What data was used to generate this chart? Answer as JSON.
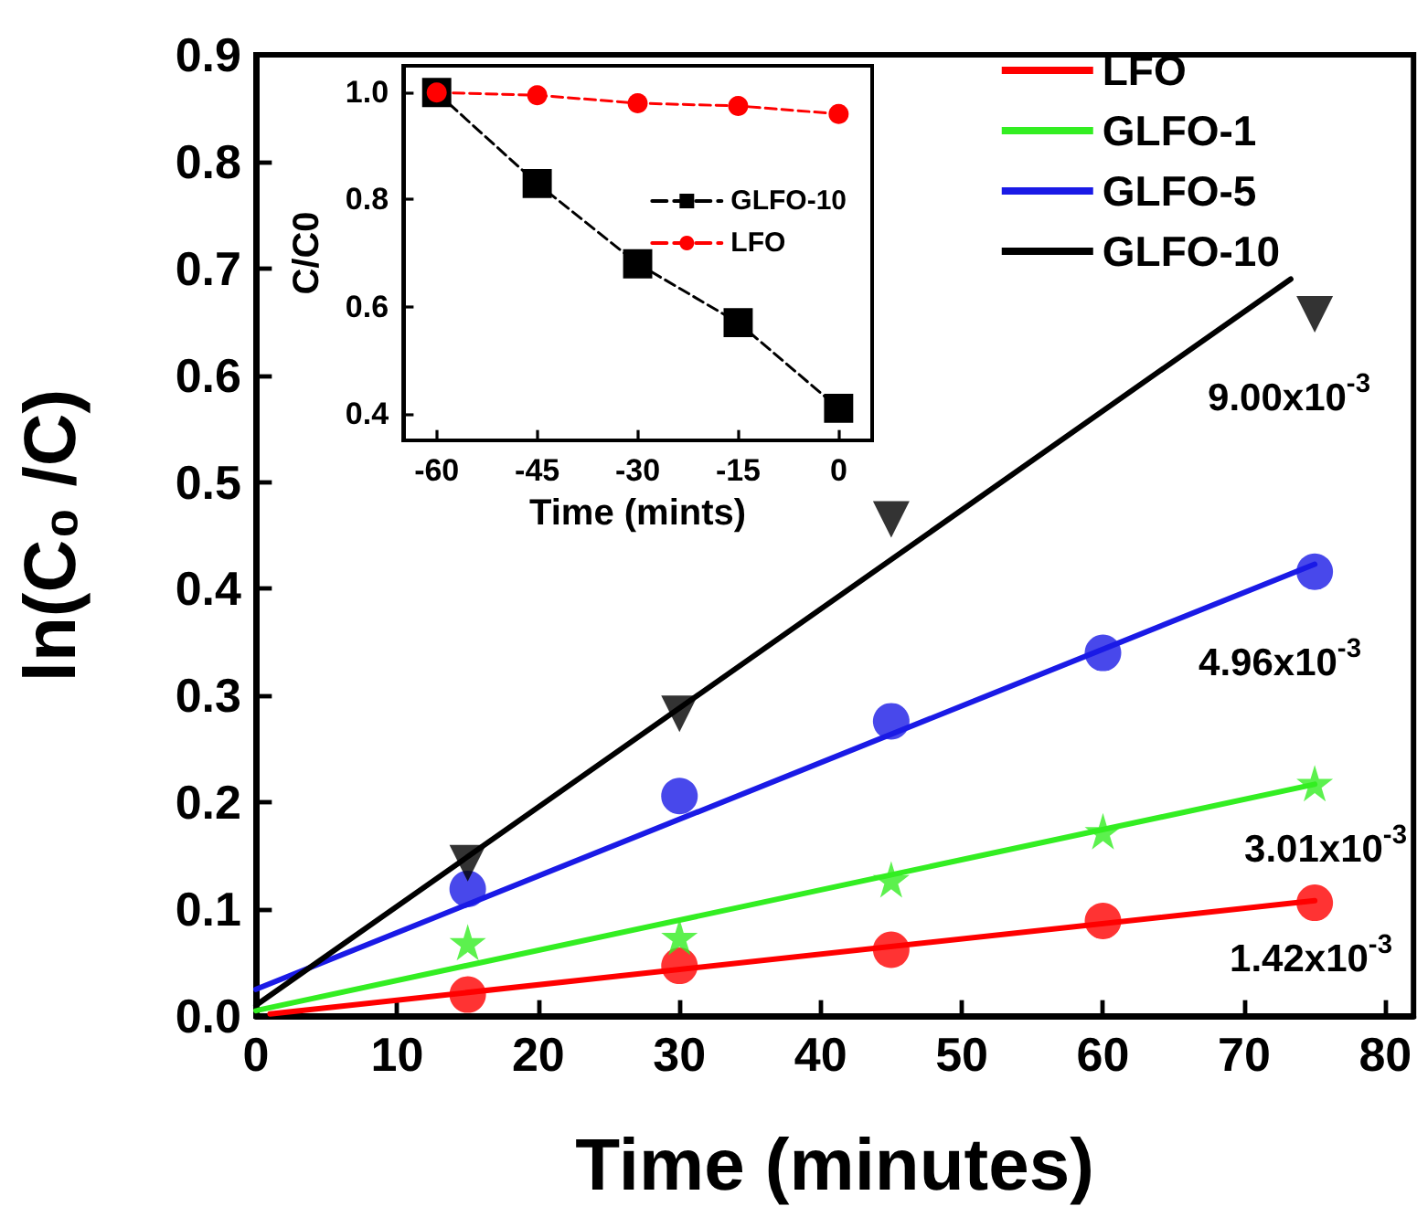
{
  "chart_data": [
    {
      "type": "scatter",
      "xlabel": "Time (minutes)",
      "ylabel": "ln(C₀ /C)",
      "xlim": [
        0,
        82
      ],
      "ylim": [
        0,
        0.9
      ],
      "xticks": [
        0,
        10,
        20,
        30,
        40,
        50,
        60,
        70,
        80
      ],
      "yticks": [
        {
          "value": 0,
          "label": "0.0"
        },
        {
          "value": 0.1,
          "label": "0.1"
        },
        {
          "value": 0.2,
          "label": "0.2"
        },
        {
          "value": 0.3,
          "label": "0.3"
        },
        {
          "value": 0.4,
          "label": "0.4"
        },
        {
          "value": 0.5,
          "label": "0.5"
        },
        {
          "value": 0.6,
          "label": "0.6"
        },
        {
          "value": 0.7,
          "label": "0.7"
        },
        {
          "value": 0.8,
          "label": "0.8"
        },
        {
          "value": 0.9,
          "label": "0.9"
        }
      ],
      "legend": "top right",
      "series": [
        {
          "marker": "circle",
          "color": "#ff0000",
          "x": [
            15,
            30,
            45,
            60,
            75
          ],
          "values": [
            0.02,
            0.047,
            0.062,
            0.089,
            0.106
          ]
        },
        {
          "marker": "star",
          "color": "#33ee22",
          "x": [
            15,
            30,
            45,
            60,
            75
          ],
          "values": [
            0.069,
            0.074,
            0.128,
            0.173,
            0.218
          ]
        },
        {
          "marker": "circle",
          "color": "#1a1ae6",
          "x": [
            15,
            30,
            45,
            60,
            75
          ],
          "values": [
            0.119,
            0.206,
            0.276,
            0.34,
            0.416
          ]
        },
        {
          "marker": "triangle",
          "color": "#000000",
          "x": [
            15,
            30,
            45,
            60,
            75
          ],
          "values": [
            0.143,
            0.283,
            0.465,
            null,
            0.657
          ]
        },
        {
          "type": "line",
          "name": "LFO",
          "color": "#ff0000",
          "x": [
            1,
            75
          ],
          "values": [
            0.002,
            0.108
          ]
        },
        {
          "type": "line",
          "name": "GLFO-1",
          "color": "#33ee22",
          "x": [
            0,
            75
          ],
          "values": [
            0.005,
            0.217
          ]
        },
        {
          "type": "line",
          "name": "GLFO-5",
          "color": "#1a1ae6",
          "x": [
            0,
            75
          ],
          "values": [
            0.025,
            0.423
          ]
        },
        {
          "type": "line",
          "name": "GLFO-10",
          "color": "#000000",
          "x": [
            0,
            73.3
          ],
          "values": [
            0.01,
            0.69
          ]
        }
      ],
      "annotations": [
        "9.00x10$^{-3}$",
        "4.96x10$^{-3}$",
        "3.01x10$^{-3}$",
        "1.42x10$^{-3}$"
      ]
    },
    {
      "type": "line",
      "xlabel": "Time (mints)",
      "ylabel": "C/C0",
      "xlim": [
        -65,
        5
      ],
      "ylim": [
        0.35,
        1.05
      ],
      "xticks": [
        -60,
        -45,
        -30,
        -15,
        0
      ],
      "yticks": [
        {
          "value": 0.4,
          "label": "0.4"
        },
        {
          "value": 0.6,
          "label": "0.6"
        },
        {
          "value": 0.8,
          "label": "0.8"
        },
        {
          "value": 1,
          "label": "1.0"
        }
      ],
      "legend": "right",
      "line_style": "dashed",
      "x": [
        -60,
        -45,
        -30,
        -15,
        0
      ],
      "series": [
        {
          "name": "GLFO-10",
          "marker": "square",
          "color": "#000000",
          "values": [
            1.0,
            0.83,
            0.68,
            0.57,
            0.41
          ]
        },
        {
          "name": "LFO",
          "marker": "circle",
          "color": "#ff0000",
          "values": [
            1.0,
            0.995,
            0.98,
            0.975,
            0.96
          ]
        }
      ]
    }
  ]
}
